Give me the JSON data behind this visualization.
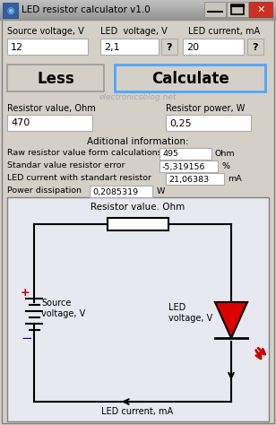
{
  "title": "LED resistor calculator v1.0",
  "bg_color": "#d4d0c8",
  "titlebar_bg": "#a8a8a8",
  "label_source_voltage": "Source voltage, V",
  "label_led_voltage": "LED  voltage, V",
  "label_led_current": "LED current, mA",
  "val_source": "12",
  "val_led_voltage": "2,1",
  "val_led_current": "20",
  "btn_less": "Less",
  "btn_calculate": "Calculate",
  "watermark": "electronicsblog.net",
  "label_res_value": "Resistor value, Ohm",
  "label_res_power": "Resistor power, W",
  "val_res_value": "470",
  "val_res_power": "0,25",
  "label_additional": "Aditional information:",
  "row1_label": "Raw resistor value form calculations",
  "row1_val": "495",
  "row1_unit": "Ohm",
  "row2_label": "Standar value resistor error",
  "row2_val": "-5,319156",
  "row2_unit": "%",
  "row3_label": "LED current with standart resistor",
  "row3_val": "21,06383",
  "row3_unit": "mA",
  "row4_label": "Power dissipation",
  "row4_val": "0,2085319",
  "row4_unit": "W",
  "circuit_label_top": "Resistor value. Ohm",
  "circuit_label_source": "Source\nvoltage, V",
  "circuit_label_led_v": "LED\nvoltage, V",
  "circuit_label_led_i": "LED current, mA",
  "calc_btn_border": "#4da6ff",
  "close_btn_color": "#c0392b",
  "titlebar_gradient_top": "#c8c8c8",
  "titlebar_gradient_bot": "#a0a0a0"
}
